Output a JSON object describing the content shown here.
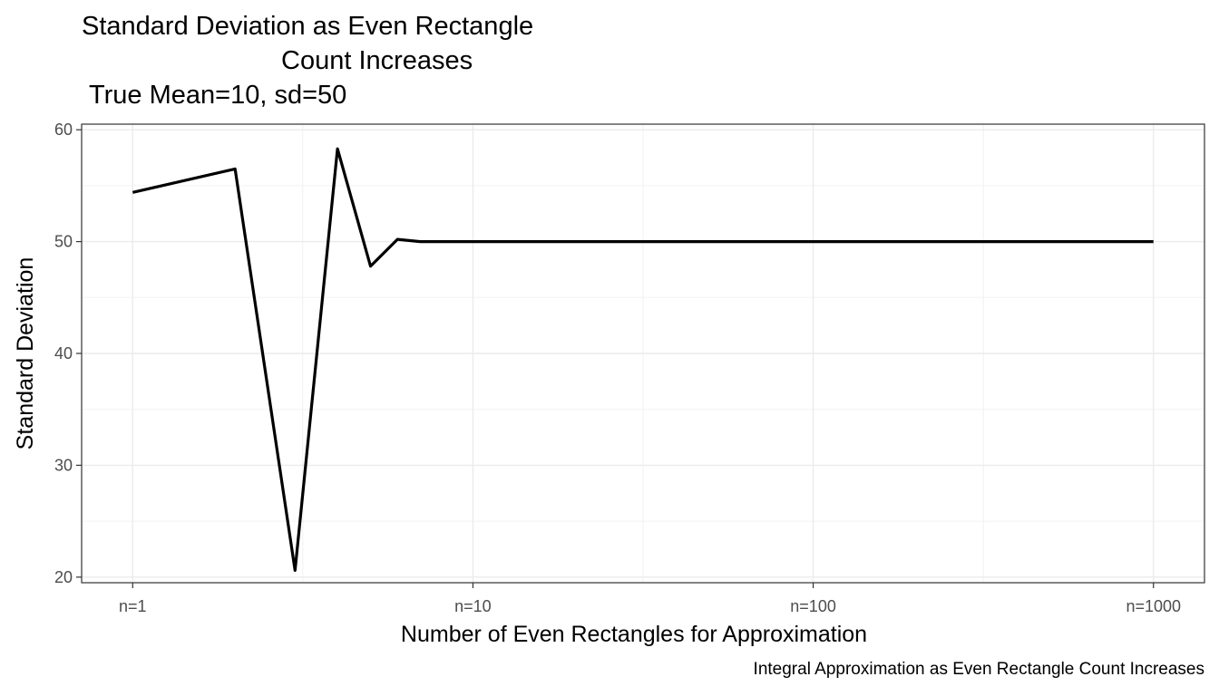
{
  "titles": {
    "line1": "Standard Deviation as Even Rectangle",
    "line2": "Count Increases",
    "subtitle": "True Mean=10, sd=50"
  },
  "caption": "Integral Approximation as Even Rectangle Count Increases",
  "chart_data": {
    "type": "line",
    "title": "Standard Deviation as Even Rectangle Count Increases",
    "subtitle": "True Mean=10, sd=50",
    "caption": "Integral Approximation as Even Rectangle Count Increases",
    "xlabel": "Number of Even Rectangles for Approximation",
    "ylabel": "Standard Deviation",
    "x_scale": "log10",
    "xlim": [
      1,
      1000
    ],
    "ylim": [
      20,
      60
    ],
    "x_ticks": [
      1,
      10,
      100,
      1000
    ],
    "x_tick_labels": [
      "n=1",
      "n=10",
      "n=100",
      "n=1000"
    ],
    "y_ticks": [
      20,
      30,
      40,
      50,
      60
    ],
    "y_tick_labels": [
      "20",
      "30",
      "40",
      "50",
      "60"
    ],
    "grid": true,
    "series": [
      {
        "color": "#000000",
        "x": [
          1,
          2,
          3,
          4,
          5,
          6,
          7,
          8,
          10,
          20,
          50,
          100,
          200,
          500,
          1000
        ],
        "y": [
          54.4,
          56.5,
          20.6,
          58.3,
          47.8,
          50.2,
          50.0,
          50.0,
          50.0,
          50.0,
          50.0,
          50.0,
          50.0,
          50.0,
          50.0
        ]
      }
    ]
  }
}
